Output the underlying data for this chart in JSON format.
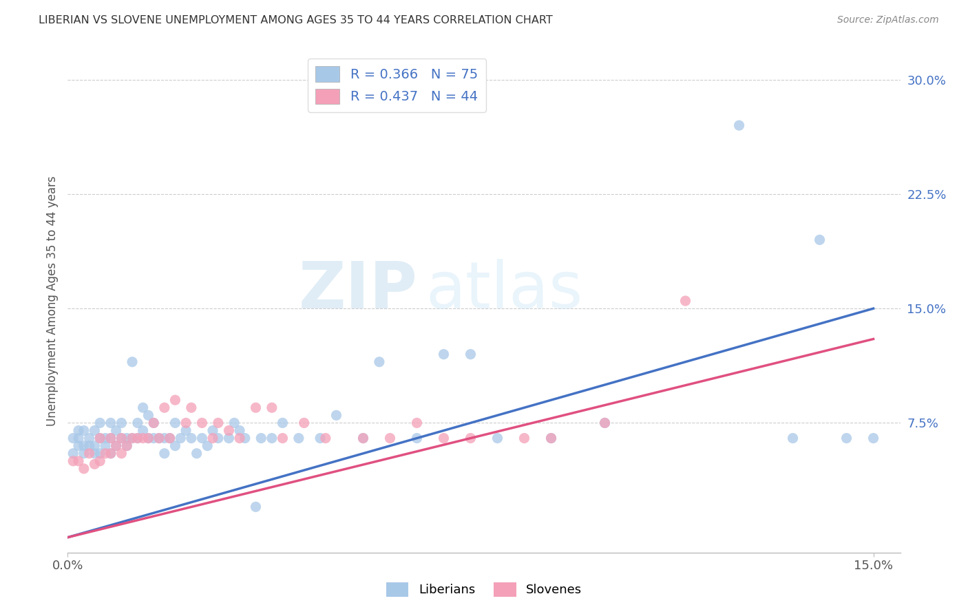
{
  "title": "LIBERIAN VS SLOVENE UNEMPLOYMENT AMONG AGES 35 TO 44 YEARS CORRELATION CHART",
  "source": "Source: ZipAtlas.com",
  "ylabel": "Unemployment Among Ages 35 to 44 years",
  "xlim": [
    0.0,
    0.155
  ],
  "ylim": [
    -0.01,
    0.32
  ],
  "yticks": [
    0.075,
    0.15,
    0.225,
    0.3
  ],
  "ytick_labels": [
    "7.5%",
    "15.0%",
    "22.5%",
    "30.0%"
  ],
  "xtick_labels": [
    "0.0%",
    "15.0%"
  ],
  "xtick_positions": [
    0.0,
    0.15
  ],
  "liberian_R": 0.366,
  "liberian_N": 75,
  "slovene_R": 0.437,
  "slovene_N": 44,
  "liberian_color": "#a8c8e8",
  "slovene_color": "#f4a0b8",
  "liberian_line_color": "#4472c4",
  "slovene_line_color": "#e05080",
  "watermark_zip": "ZIP",
  "watermark_atlas": "atlas",
  "lib_line_x0": 0.0,
  "lib_line_y0": 0.0,
  "lib_line_x1": 0.15,
  "lib_line_y1": 0.15,
  "slov_line_x0": 0.0,
  "slov_line_y0": 0.0,
  "slov_line_x1": 0.15,
  "slov_line_y1": 0.13,
  "liberian_x": [
    0.001,
    0.001,
    0.002,
    0.002,
    0.002,
    0.003,
    0.003,
    0.003,
    0.004,
    0.004,
    0.005,
    0.005,
    0.005,
    0.006,
    0.006,
    0.006,
    0.007,
    0.007,
    0.008,
    0.008,
    0.008,
    0.009,
    0.009,
    0.01,
    0.01,
    0.011,
    0.011,
    0.012,
    0.012,
    0.013,
    0.013,
    0.014,
    0.014,
    0.015,
    0.015,
    0.016,
    0.016,
    0.017,
    0.018,
    0.018,
    0.019,
    0.02,
    0.02,
    0.021,
    0.022,
    0.023,
    0.024,
    0.025,
    0.026,
    0.027,
    0.028,
    0.03,
    0.031,
    0.032,
    0.033,
    0.035,
    0.036,
    0.038,
    0.04,
    0.043,
    0.047,
    0.05,
    0.055,
    0.058,
    0.065,
    0.07,
    0.075,
    0.08,
    0.09,
    0.1,
    0.125,
    0.135,
    0.14,
    0.145,
    0.15
  ],
  "liberian_y": [
    0.055,
    0.065,
    0.06,
    0.065,
    0.07,
    0.055,
    0.06,
    0.07,
    0.06,
    0.065,
    0.055,
    0.06,
    0.07,
    0.055,
    0.065,
    0.075,
    0.06,
    0.065,
    0.055,
    0.065,
    0.075,
    0.06,
    0.07,
    0.065,
    0.075,
    0.06,
    0.065,
    0.065,
    0.115,
    0.065,
    0.075,
    0.07,
    0.085,
    0.065,
    0.08,
    0.065,
    0.075,
    0.065,
    0.055,
    0.065,
    0.065,
    0.06,
    0.075,
    0.065,
    0.07,
    0.065,
    0.055,
    0.065,
    0.06,
    0.07,
    0.065,
    0.065,
    0.075,
    0.07,
    0.065,
    0.02,
    0.065,
    0.065,
    0.075,
    0.065,
    0.065,
    0.08,
    0.065,
    0.115,
    0.065,
    0.12,
    0.12,
    0.065,
    0.065,
    0.075,
    0.27,
    0.065,
    0.195,
    0.065,
    0.065
  ],
  "slovene_x": [
    0.001,
    0.002,
    0.003,
    0.004,
    0.005,
    0.006,
    0.006,
    0.007,
    0.008,
    0.008,
    0.009,
    0.01,
    0.01,
    0.011,
    0.012,
    0.013,
    0.014,
    0.015,
    0.016,
    0.017,
    0.018,
    0.019,
    0.02,
    0.022,
    0.023,
    0.025,
    0.027,
    0.028,
    0.03,
    0.032,
    0.035,
    0.038,
    0.04,
    0.044,
    0.048,
    0.055,
    0.06,
    0.065,
    0.07,
    0.075,
    0.085,
    0.09,
    0.1,
    0.115
  ],
  "slovene_y": [
    0.05,
    0.05,
    0.045,
    0.055,
    0.048,
    0.05,
    0.065,
    0.055,
    0.055,
    0.065,
    0.06,
    0.055,
    0.065,
    0.06,
    0.065,
    0.065,
    0.065,
    0.065,
    0.075,
    0.065,
    0.085,
    0.065,
    0.09,
    0.075,
    0.085,
    0.075,
    0.065,
    0.075,
    0.07,
    0.065,
    0.085,
    0.085,
    0.065,
    0.075,
    0.065,
    0.065,
    0.065,
    0.075,
    0.065,
    0.065,
    0.065,
    0.065,
    0.075,
    0.155
  ]
}
